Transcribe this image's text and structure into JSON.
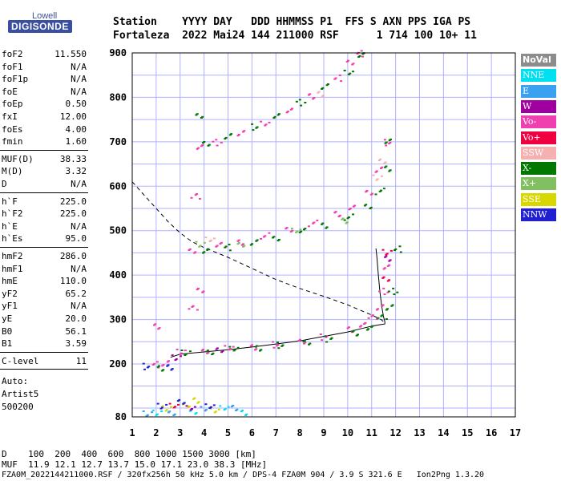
{
  "logo": {
    "top": "Lowell",
    "main": "DIGISONDE"
  },
  "header": {
    "row1": "Station    YYYY DAY   DDD HHMMSS P1  FFS S AXN PPS IGA PS",
    "row2": "Fortaleza  2022 Mai24 144 211000 RSF      1 714 100 10+ 11"
  },
  "params_group1": [
    {
      "k": "foF2",
      "v": "11.550"
    },
    {
      "k": "foF1",
      "v": "N/A"
    },
    {
      "k": "foF1p",
      "v": "N/A"
    },
    {
      "k": "foE",
      "v": "N/A"
    },
    {
      "k": "foEp",
      "v": "0.50"
    },
    {
      "k": "fxI",
      "v": "12.00"
    },
    {
      "k": "foEs",
      "v": "4.00"
    },
    {
      "k": "fmin",
      "v": "1.60"
    }
  ],
  "params_group2": [
    {
      "k": "MUF(D)",
      "v": "38.33"
    },
    {
      "k": "M(D)",
      "v": "3.32"
    },
    {
      "k": "D",
      "v": "N/A"
    }
  ],
  "params_group3": [
    {
      "k": "h`F",
      "v": "225.0"
    },
    {
      "k": "h`F2",
      "v": "225.0"
    },
    {
      "k": "h`E",
      "v": "N/A"
    },
    {
      "k": "h`Es",
      "v": "95.0"
    }
  ],
  "params_group4": [
    {
      "k": "hmF2",
      "v": "286.0"
    },
    {
      "k": "hmF1",
      "v": "N/A"
    },
    {
      "k": "hmE",
      "v": "110.0"
    },
    {
      "k": "yF2",
      "v": "65.2"
    },
    {
      "k": "yF1",
      "v": "N/A"
    },
    {
      "k": "yE",
      "v": "20.0"
    },
    {
      "k": "B0",
      "v": "56.1"
    },
    {
      "k": "B1",
      "v": "3.59"
    }
  ],
  "params_group5": [
    {
      "k": "C-level",
      "v": "11"
    }
  ],
  "auto": {
    "l1": "Auto:",
    "l2": "Artist5",
    "l3": "500200"
  },
  "legend": [
    {
      "label": "NoVal",
      "color": "#8c8c8c"
    },
    {
      "label": "NNE",
      "color": "#00e0f0"
    },
    {
      "label": "E",
      "color": "#3aa0f0"
    },
    {
      "label": "W",
      "color": "#a000a0"
    },
    {
      "label": "Vo-",
      "color": "#f040b0"
    },
    {
      "label": "Vo+",
      "color": "#f00040"
    },
    {
      "label": "SSW",
      "color": "#f5b0b0"
    },
    {
      "label": "X-",
      "color": "#007800"
    },
    {
      "label": "X+",
      "color": "#80c060"
    },
    {
      "label": "SSE",
      "color": "#d8d800"
    },
    {
      "label": "NNW",
      "color": "#2020d0"
    }
  ],
  "footer": {
    "d_row": "D    100  200  400  600  800 1000 1500 3000 [km]",
    "muf_row": "MUF  11.9 12.1 12.7 13.7 15.0 17.1 23.0 38.3 [MHz]",
    "file_row": "FZA0M_2022144211000.RSF / 320fx256h 50 kHz 5.0 km / DPS-4 FZA0M 904 / 3.9 S 321.6 E   Ion2Png 1.3.20"
  },
  "chart_data": {
    "type": "scatter",
    "xlabel": "",
    "ylabel": "",
    "xlim": [
      1,
      17
    ],
    "ylim": [
      80,
      900
    ],
    "x_ticks": [
      1,
      2,
      3,
      4,
      5,
      6,
      7,
      8,
      9,
      10,
      11,
      12,
      13,
      14,
      15,
      16,
      17
    ],
    "y_ticks": [
      80,
      200,
      300,
      400,
      500,
      600,
      700,
      800,
      900
    ],
    "grid": true,
    "legend_position": "right",
    "series": [
      {
        "name": "Vo-",
        "color": "#f040b0",
        "points": [
          [
            3.0,
            228
          ],
          [
            4.0,
            232
          ],
          [
            5.0,
            236
          ],
          [
            6.0,
            240
          ],
          [
            7.0,
            245
          ],
          [
            8.0,
            252
          ],
          [
            9.0,
            262
          ],
          [
            10.0,
            278
          ],
          [
            10.6,
            292
          ],
          [
            11.0,
            305
          ],
          [
            11.3,
            330
          ],
          [
            11.45,
            365
          ],
          [
            11.55,
            420
          ],
          [
            2.0,
            200
          ],
          [
            2.3,
            202
          ],
          [
            3.5,
            458
          ],
          [
            4.5,
            468
          ],
          [
            5.5,
            476
          ],
          [
            6.5,
            490
          ],
          [
            7.5,
            504
          ],
          [
            8.5,
            518
          ],
          [
            9.5,
            538
          ],
          [
            10.2,
            556
          ],
          [
            10.8,
            585
          ],
          [
            11.3,
            640
          ],
          [
            11.55,
            700
          ],
          [
            3.8,
            690
          ],
          [
            4.5,
            700
          ],
          [
            5.5,
            720
          ],
          [
            6.5,
            745
          ],
          [
            7.5,
            770
          ],
          [
            8.5,
            805
          ],
          [
            9.5,
            845
          ],
          [
            10.1,
            880
          ],
          [
            10.4,
            900
          ],
          [
            2.0,
            285
          ],
          [
            3.5,
            330
          ],
          [
            3.8,
            365
          ],
          [
            3.6,
            580
          ]
        ]
      },
      {
        "name": "X-",
        "color": "#007800",
        "points": [
          [
            3.2,
            226
          ],
          [
            4.2,
            230
          ],
          [
            5.2,
            234
          ],
          [
            6.2,
            238
          ],
          [
            7.2,
            244
          ],
          [
            8.2,
            250
          ],
          [
            9.2,
            258
          ],
          [
            10.2,
            270
          ],
          [
            10.9,
            285
          ],
          [
            11.4,
            305
          ],
          [
            11.7,
            330
          ],
          [
            11.85,
            365
          ],
          [
            4.0,
            456
          ],
          [
            5.0,
            464
          ],
          [
            6.0,
            474
          ],
          [
            7.0,
            486
          ],
          [
            8.0,
            500
          ],
          [
            9.0,
            514
          ],
          [
            10.0,
            532
          ],
          [
            10.8,
            556
          ],
          [
            11.3,
            590
          ],
          [
            11.6,
            640
          ],
          [
            11.7,
            705
          ],
          [
            4.0,
            695
          ],
          [
            5.0,
            715
          ],
          [
            6.0,
            735
          ],
          [
            7.0,
            760
          ],
          [
            8.0,
            790
          ],
          [
            9.0,
            825
          ],
          [
            10.0,
            860
          ],
          [
            10.5,
            895
          ],
          [
            2.2,
            193
          ],
          [
            12.0,
            460
          ],
          [
            3.8,
            760
          ]
        ]
      },
      {
        "name": "X+",
        "color": "#80c060",
        "points": [
          [
            3.8,
            470
          ],
          [
            5.5,
            472
          ],
          [
            7.8,
            500
          ],
          [
            9.8,
            525
          ]
        ]
      },
      {
        "name": "SSW",
        "color": "#f5b0b0",
        "points": [
          [
            11.2,
            620
          ],
          [
            11.4,
            660
          ],
          [
            4.2,
            480
          ],
          [
            8.8,
            810
          ]
        ]
      },
      {
        "name": "NNE",
        "color": "#00e0f0",
        "points": [
          [
            2.0,
            90
          ],
          [
            3.5,
            95
          ],
          [
            4.8,
            100
          ],
          [
            5.6,
            92
          ]
        ]
      },
      {
        "name": "E",
        "color": "#3aa0f0",
        "points": [
          [
            1.6,
            88
          ],
          [
            2.6,
            92
          ],
          [
            4.0,
            98
          ],
          [
            5.2,
            103
          ]
        ]
      },
      {
        "name": "W",
        "color": "#a000a0",
        "points": [
          [
            2.8,
            215
          ],
          [
            4.6,
            235
          ],
          [
            3.4,
            100
          ],
          [
            11.6,
            440
          ]
        ]
      },
      {
        "name": "Vo+",
        "color": "#f00040",
        "points": [
          [
            11.6,
            452
          ],
          [
            11.55,
            395
          ],
          [
            2.7,
            105
          ]
        ]
      },
      {
        "name": "SSE",
        "color": "#d8d800",
        "points": [
          [
            2.4,
            100
          ],
          [
            3.2,
            110
          ],
          [
            4.4,
            94
          ],
          [
            3.6,
            120
          ]
        ]
      },
      {
        "name": "NNW",
        "color": "#2020d0",
        "points": [
          [
            2.2,
            105
          ],
          [
            3.0,
            118
          ],
          [
            4.2,
            104
          ],
          [
            2.5,
            195
          ],
          [
            1.6,
            196
          ]
        ]
      }
    ],
    "profile_solid": [
      [
        2.6,
        215
      ],
      [
        3.0,
        222
      ],
      [
        4.0,
        227
      ],
      [
        5.0,
        232
      ],
      [
        6.0,
        238
      ],
      [
        7.0,
        245
      ],
      [
        8.0,
        252
      ],
      [
        9.0,
        262
      ],
      [
        10.0,
        272
      ],
      [
        10.6,
        280
      ],
      [
        11.0,
        285
      ],
      [
        11.3,
        288
      ],
      [
        11.55,
        290
      ],
      [
        11.55,
        295
      ],
      [
        11.5,
        305
      ],
      [
        11.42,
        330
      ],
      [
        11.35,
        360
      ],
      [
        11.28,
        400
      ],
      [
        11.22,
        440
      ],
      [
        11.18,
        460
      ]
    ],
    "profile_dashed": [
      [
        1.0,
        610
      ],
      [
        1.5,
        580
      ],
      [
        2.0,
        550
      ],
      [
        2.5,
        520
      ],
      [
        3.0,
        495
      ],
      [
        3.5,
        475
      ],
      [
        4.0,
        462
      ],
      [
        5.0,
        440
      ],
      [
        6.0,
        415
      ],
      [
        7.0,
        390
      ],
      [
        8.0,
        370
      ],
      [
        9.0,
        352
      ],
      [
        10.0,
        333
      ],
      [
        11.0,
        310
      ],
      [
        11.4,
        300
      ],
      [
        11.55,
        292
      ]
    ]
  }
}
